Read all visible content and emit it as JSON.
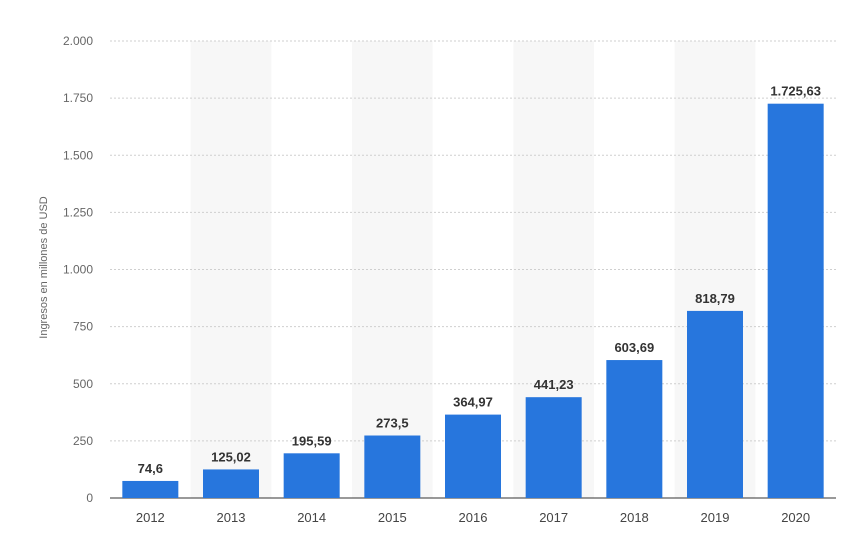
{
  "chart_data": {
    "type": "bar",
    "title": "",
    "xlabel": "",
    "ylabel": "Ingresos en millones de USD",
    "categories": [
      "2012",
      "2013",
      "2014",
      "2015",
      "2016",
      "2017",
      "2018",
      "2019",
      "2020"
    ],
    "values": [
      74.6,
      125.02,
      195.59,
      273.5,
      364.97,
      441.23,
      603.69,
      818.79,
      1725.63
    ],
    "value_labels": [
      "74,6",
      "125,02",
      "195,59",
      "273,5",
      "364,97",
      "441,23",
      "603,69",
      "818,79",
      "1.725,63"
    ],
    "ylim": [
      0,
      2000
    ],
    "yticks": [
      0,
      250,
      500,
      750,
      1000,
      1250,
      1500,
      1750,
      2000
    ],
    "ytick_labels": [
      "0",
      "250",
      "500",
      "750",
      "1.000",
      "1.250",
      "1.500",
      "1.750",
      "2.000"
    ],
    "grid": true,
    "legend": "none",
    "colors": {
      "bar": "#2776dd",
      "band": "#f7f7f7",
      "grid": "#cfcfcf"
    }
  }
}
